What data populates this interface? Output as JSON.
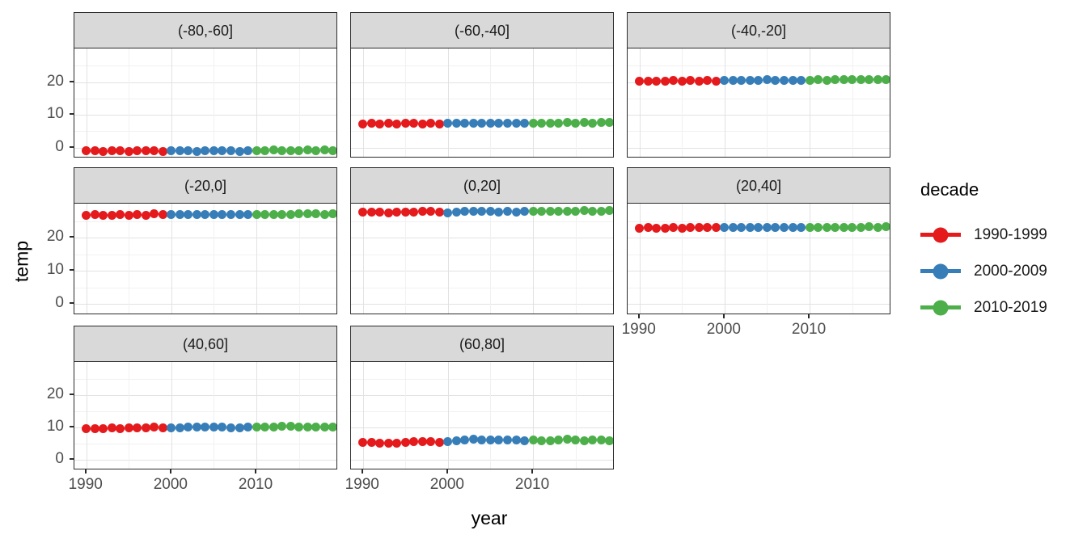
{
  "chart_data": {
    "type": "scatter",
    "title": "",
    "xlabel": "year",
    "ylabel": "temp",
    "x_ticks": [
      1990,
      2000,
      2010
    ],
    "x_minor_ticks": [
      1995,
      2005,
      2015
    ],
    "y_ticks": [
      0,
      10,
      20
    ],
    "y_minor_ticks": [
      5,
      15,
      25
    ],
    "x_range": [
      1988.6,
      2019.6
    ],
    "y_range": [
      -3.3,
      30.3
    ],
    "grid": true,
    "legend": {
      "title": "decade",
      "position": "right",
      "entries": [
        {
          "label": "1990-1999",
          "color": "#E41A1C",
          "decade_start": 1990
        },
        {
          "label": "2000-2009",
          "color": "#377EB8",
          "decade_start": 2000
        },
        {
          "label": "2010-2019",
          "color": "#4DAF4A",
          "decade_start": 2010
        }
      ]
    },
    "years": [
      1990,
      1991,
      1992,
      1993,
      1994,
      1995,
      1996,
      1997,
      1998,
      1999,
      2000,
      2001,
      2002,
      2003,
      2004,
      2005,
      2006,
      2007,
      2008,
      2009,
      2010,
      2011,
      2012,
      2013,
      2014,
      2015,
      2016,
      2017,
      2018,
      2019
    ],
    "facets": [
      {
        "label": "(-80,-60]",
        "temps": [
          -1.0,
          -0.9,
          -1.1,
          -0.9,
          -1.0,
          -1.1,
          -0.9,
          -1.0,
          -0.9,
          -1.1,
          -1.0,
          -0.9,
          -1.0,
          -1.1,
          -0.9,
          -1.0,
          -0.9,
          -1.0,
          -1.1,
          -0.9,
          -0.9,
          -1.0,
          -0.8,
          -0.9,
          -1.0,
          -0.9,
          -0.8,
          -1.0,
          -0.7,
          -0.9
        ]
      },
      {
        "label": "(-60,-40]",
        "temps": [
          7.3,
          7.4,
          7.3,
          7.4,
          7.3,
          7.4,
          7.4,
          7.3,
          7.4,
          7.3,
          7.4,
          7.4,
          7.5,
          7.4,
          7.4,
          7.5,
          7.4,
          7.4,
          7.5,
          7.4,
          7.5,
          7.5,
          7.4,
          7.5,
          7.6,
          7.5,
          7.6,
          7.5,
          7.6,
          7.6
        ]
      },
      {
        "label": "(-40,-20]",
        "temps": [
          20.4,
          20.4,
          20.3,
          20.4,
          20.5,
          20.4,
          20.5,
          20.4,
          20.5,
          20.4,
          20.5,
          20.5,
          20.6,
          20.5,
          20.6,
          20.7,
          20.5,
          20.6,
          20.5,
          20.6,
          20.6,
          20.7,
          20.6,
          20.7,
          20.8,
          20.7,
          20.8,
          20.8,
          20.9,
          20.8
        ]
      },
      {
        "label": "(-20,0]",
        "temps": [
          26.8,
          26.9,
          26.8,
          26.7,
          26.9,
          26.8,
          26.9,
          26.8,
          27.2,
          27.0,
          26.9,
          27.0,
          26.9,
          27.0,
          27.0,
          27.1,
          26.9,
          27.0,
          26.9,
          27.0,
          27.0,
          26.9,
          27.0,
          27.1,
          27.0,
          27.2,
          27.3,
          27.2,
          27.1,
          27.2
        ]
      },
      {
        "label": "(0,20]",
        "temps": [
          27.7,
          27.8,
          27.7,
          27.6,
          27.8,
          27.7,
          27.8,
          27.9,
          28.0,
          27.7,
          27.6,
          27.8,
          27.9,
          27.9,
          27.9,
          27.9,
          27.8,
          27.9,
          27.8,
          27.9,
          27.9,
          28.0,
          27.9,
          28.0,
          28.1,
          28.1,
          28.2,
          28.1,
          28.0,
          28.2
        ]
      },
      {
        "label": "(20,40]",
        "temps": [
          22.9,
          23.0,
          22.9,
          22.8,
          23.0,
          22.9,
          23.0,
          23.0,
          23.1,
          23.0,
          23.0,
          23.1,
          23.0,
          23.1,
          23.0,
          23.1,
          23.0,
          23.1,
          23.0,
          23.1,
          23.1,
          23.0,
          23.1,
          23.2,
          23.2,
          23.1,
          23.2,
          23.3,
          23.2,
          23.3
        ]
      },
      {
        "label": "(40,60]",
        "temps": [
          9.7,
          9.6,
          9.7,
          9.8,
          9.7,
          9.9,
          9.8,
          9.9,
          10.0,
          9.8,
          9.8,
          9.9,
          10.0,
          10.0,
          10.1,
          10.2,
          10.1,
          9.9,
          9.8,
          10.0,
          10.0,
          10.1,
          10.2,
          10.3,
          10.3,
          10.1,
          10.2,
          10.1,
          10.2,
          10.2
        ]
      },
      {
        "label": "(60,80]",
        "temps": [
          5.3,
          5.4,
          5.1,
          5.2,
          5.2,
          5.4,
          5.5,
          5.6,
          5.5,
          5.4,
          5.7,
          5.9,
          6.0,
          6.3,
          6.2,
          6.1,
          6.0,
          6.0,
          6.1,
          5.9,
          6.2,
          5.9,
          5.8,
          6.0,
          6.3,
          6.0,
          5.8,
          6.1,
          6.0,
          5.9
        ]
      }
    ],
    "facets_with_x_axis": [
      5,
      6,
      7
    ],
    "facets_with_y_axis": [
      0,
      3,
      6
    ],
    "colors": {
      "strip_fill": "#d9d9d9",
      "panel_border": "#2b2b2b",
      "grid_major": "#e2e2e2",
      "grid_minor": "#f1f1f1",
      "axis_text": "#4d4d4d",
      "axis_title": "#000000"
    }
  }
}
